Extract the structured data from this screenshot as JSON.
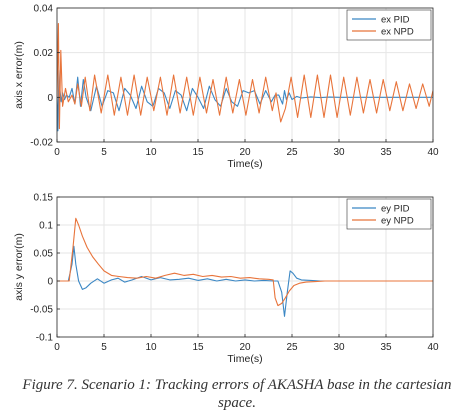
{
  "caption": {
    "line1": "Figure 7. Scenario 1: Tracking errors of AKASHA base in the cartesian",
    "line2": "space."
  },
  "colors": {
    "pid": "#3b87c4",
    "npd": "#e8743b",
    "grid": "#e6e6e6",
    "axis": "#262626"
  },
  "chart_data": [
    {
      "type": "line",
      "xlabel": "Time(s)",
      "ylabel": "axis x error(m)",
      "xlim": [
        0,
        40
      ],
      "ylim": [
        -0.02,
        0.04
      ],
      "xticks": [
        0,
        5,
        10,
        15,
        20,
        25,
        30,
        35,
        40
      ],
      "yticks": [
        -0.02,
        0,
        0.02,
        0.04
      ],
      "ytick_labels": [
        "-0.02",
        "0",
        "0.02",
        "0.04"
      ],
      "grid": true,
      "legend_position": "top-right",
      "series": [
        {
          "name": "ex PID",
          "color": "#3b87c4",
          "x": [
            0,
            0.1,
            0.2,
            0.3,
            0.45,
            0.6,
            0.8,
            1.0,
            1.3,
            1.6,
            1.9,
            2.2,
            2.5,
            2.8,
            3.1,
            3.6,
            4.2,
            4.8,
            5.4,
            6.0,
            6.6,
            7.2,
            7.8,
            8.4,
            9.0,
            9.6,
            10.2,
            10.8,
            11.4,
            12.0,
            12.6,
            13.2,
            13.8,
            14.4,
            15.0,
            15.6,
            16.2,
            16.8,
            17.4,
            18.0,
            18.6,
            19.2,
            19.8,
            20.4,
            21.0,
            21.6,
            22.2,
            22.8,
            23.2,
            23.6,
            24.0,
            24.2,
            24.4,
            24.7,
            25.0,
            25.5,
            26.0,
            27,
            28,
            29,
            30,
            32,
            34,
            36,
            38,
            40
          ],
          "y": [
            0,
            -0.015,
            0.012,
            0.004,
            -0.002,
            0.002,
            -0.001,
            0.001,
            0,
            0.004,
            -0.003,
            0.009,
            -0.004,
            0.008,
            0.0,
            -0.006,
            0.005,
            -0.004,
            0.003,
            0.002,
            -0.006,
            0.004,
            0.001,
            -0.005,
            0.005,
            -0.002,
            -0.004,
            0.004,
            0.002,
            -0.005,
            0.003,
            0.001,
            -0.006,
            0.004,
            0.0,
            -0.005,
            0.005,
            -0.001,
            -0.004,
            0.004,
            -0.002,
            -0.004,
            0.003,
            0.002,
            0.003,
            -0.003,
            0.003,
            -0.002,
            0.001,
            0.001,
            -0.003,
            0.003,
            -0.001,
            0.002,
            -0.001,
            0.0004,
            -0.0003,
            0.0002,
            -0.0001,
            0.0001,
            0,
            0,
            0,
            0,
            0,
            0
          ]
        },
        {
          "name": "ex NPD",
          "color": "#e8743b",
          "x": [
            0,
            0.15,
            0.25,
            0.4,
            0.6,
            0.9,
            1.2,
            1.6,
            1.9,
            2.2,
            2.6,
            3.0,
            3.5,
            4.0,
            4.7,
            5.4,
            6.1,
            6.8,
            7.5,
            8.2,
            8.9,
            9.6,
            10.3,
            11.0,
            11.7,
            12.4,
            13.1,
            13.8,
            14.5,
            15.2,
            15.9,
            16.6,
            17.3,
            18.0,
            18.7,
            19.4,
            20.1,
            20.8,
            21.5,
            22.2,
            22.9,
            23.3,
            23.8,
            24.3,
            24.9,
            25.6,
            26.3,
            27.0,
            27.7,
            28.4,
            29.1,
            29.8,
            30.5,
            31.2,
            31.9,
            32.6,
            33.3,
            34.0,
            34.7,
            35.4,
            36.1,
            36.8,
            37.5,
            38.2,
            38.9,
            39.6,
            40
          ],
          "y": [
            0,
            0.033,
            -0.014,
            0.021,
            -0.004,
            0.004,
            -0.002,
            0.001,
            -0.003,
            0.006,
            -0.004,
            0.009,
            -0.006,
            0.01,
            -0.007,
            0.01,
            -0.008,
            0.009,
            -0.008,
            0.01,
            -0.008,
            0.009,
            -0.006,
            0.009,
            -0.008,
            0.01,
            -0.007,
            0.009,
            -0.008,
            0.009,
            -0.007,
            0.008,
            -0.008,
            0.009,
            -0.007,
            0.008,
            -0.008,
            0.008,
            -0.007,
            0.009,
            -0.006,
            0.002,
            -0.011,
            -0.005,
            0.009,
            -0.009,
            0.01,
            -0.009,
            0.01,
            -0.009,
            0.01,
            -0.009,
            0.009,
            -0.008,
            0.009,
            -0.007,
            0.008,
            -0.007,
            0.008,
            -0.006,
            0.007,
            -0.006,
            0.006,
            -0.005,
            0.006,
            -0.004,
            0.003
          ]
        }
      ]
    },
    {
      "type": "line",
      "xlabel": "Time(s)",
      "ylabel": "axis y error(m)",
      "xlim": [
        0,
        40
      ],
      "ylim": [
        -0.1,
        0.15
      ],
      "xticks": [
        0,
        5,
        10,
        15,
        20,
        25,
        30,
        35,
        40
      ],
      "yticks": [
        -0.1,
        -0.05,
        0,
        0.05,
        0.1,
        0.15
      ],
      "ytick_labels": [
        "-0.1",
        "-0.05",
        "0",
        "0.05",
        "0.1",
        "0.15"
      ],
      "grid": true,
      "legend_position": "top-right",
      "series": [
        {
          "name": "ey PID",
          "color": "#3b87c4",
          "x": [
            0,
            1.2,
            1.6,
            1.8,
            2.0,
            2.3,
            2.7,
            3.1,
            3.6,
            4.3,
            5.0,
            5.8,
            6.5,
            7.2,
            8.0,
            9.0,
            10.0,
            11.0,
            12.0,
            13.0,
            14.0,
            15.0,
            16.0,
            17.0,
            18.0,
            19.0,
            20.0,
            21.0,
            22.0,
            23.0,
            23.5,
            23.9,
            24.2,
            24.5,
            24.8,
            25.1,
            25.5,
            26.0,
            27.0,
            28.0,
            30,
            32,
            34,
            36,
            38,
            40
          ],
          "y": [
            0,
            0,
            0.03,
            0.062,
            0.03,
            0.0,
            -0.015,
            -0.012,
            -0.004,
            0.004,
            -0.004,
            0.002,
            0.005,
            -0.002,
            0.002,
            0.008,
            0.002,
            0.006,
            0.002,
            0.003,
            0.005,
            0.001,
            0.004,
            0.0,
            0.003,
            0.0,
            0.002,
            0.0,
            0.001,
            0.0,
            0.0,
            -0.02,
            -0.063,
            -0.02,
            0.018,
            0.014,
            0.005,
            0.002,
            0.001,
            0,
            0,
            0,
            0,
            0,
            0,
            0
          ]
        },
        {
          "name": "ey NPD",
          "color": "#e8743b",
          "x": [
            0,
            1.3,
            1.7,
            2.0,
            2.3,
            2.7,
            3.2,
            3.8,
            4.4,
            5.0,
            5.8,
            6.6,
            7.5,
            8.5,
            9.5,
            10.5,
            11.5,
            12.5,
            13.5,
            14.5,
            15.5,
            16.5,
            17.5,
            18.5,
            19.5,
            20.5,
            21.5,
            22.5,
            23.0,
            23.2,
            23.5,
            23.9,
            24.3,
            24.7,
            25.2,
            25.8,
            26.5,
            27.5,
            28.5,
            30,
            32,
            34,
            36,
            38,
            40
          ],
          "y": [
            0,
            0,
            0.06,
            0.112,
            0.1,
            0.08,
            0.06,
            0.043,
            0.03,
            0.018,
            0.01,
            0.008,
            0.006,
            0.005,
            0.008,
            0.005,
            0.01,
            0.014,
            0.01,
            0.012,
            0.008,
            0.01,
            0.007,
            0.008,
            0.005,
            0.006,
            0.004,
            0.003,
            0.002,
            -0.03,
            -0.044,
            -0.04,
            -0.03,
            -0.018,
            -0.008,
            -0.004,
            -0.002,
            -0.001,
            0,
            0,
            0,
            0,
            0,
            0,
            0
          ]
        }
      ]
    }
  ]
}
